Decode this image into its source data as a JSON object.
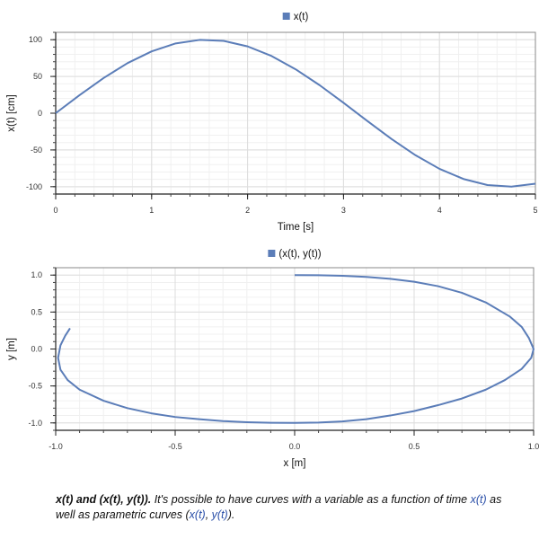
{
  "chart_data": [
    {
      "type": "line",
      "title": "",
      "xlabel": "Time [s]",
      "ylabel": "x(t) [cm]",
      "xlim": [
        0,
        5
      ],
      "ylim": [
        -110,
        110
      ],
      "xticks": [
        0,
        1,
        2,
        3,
        4,
        5
      ],
      "xtick_labels": [
        "0",
        "1",
        "2",
        "3",
        "4",
        "5"
      ],
      "yticks": [
        -100,
        -50,
        0,
        50,
        100
      ],
      "ytick_labels": [
        "-100",
        "-50",
        "0",
        "50",
        "100"
      ],
      "grid": true,
      "legend": "top-center",
      "series": [
        {
          "name": "x(t)",
          "color": "#5b7db8",
          "x": [
            0,
            0.25,
            0.5,
            0.75,
            1.0,
            1.25,
            1.5,
            1.75,
            2.0,
            2.25,
            2.5,
            2.75,
            3.0,
            3.25,
            3.5,
            3.75,
            4.0,
            4.25,
            4.5,
            4.75,
            5.0
          ],
          "y": [
            0,
            24.7,
            47.9,
            68.2,
            84.1,
            94.9,
            99.7,
            98.4,
            90.9,
            77.8,
            59.8,
            38.2,
            14.1,
            -10.8,
            -35.1,
            -57.2,
            -75.7,
            -89.5,
            -97.8,
            -99.9,
            -95.9
          ]
        }
      ]
    },
    {
      "type": "line",
      "title": "",
      "xlabel": "x [m]",
      "ylabel": "y [m]",
      "xlim": [
        -1.0,
        1.0
      ],
      "ylim": [
        -1.1,
        1.1
      ],
      "xticks": [
        -1.0,
        -0.5,
        0.0,
        0.5,
        1.0
      ],
      "xtick_labels": [
        "-1.0",
        "-0.5",
        "0.0",
        "0.5",
        "1.0"
      ],
      "yticks": [
        -1.0,
        -0.5,
        0.0,
        0.5,
        1.0
      ],
      "ytick_labels": [
        "-1.0",
        "-0.5",
        "0.0",
        "0.5",
        "1.0"
      ],
      "grid": true,
      "legend": "top-center",
      "series": [
        {
          "name": "(x(t), y(t))",
          "color": "#5b7db8",
          "x": [
            0.0,
            0.1,
            0.2,
            0.3,
            0.4,
            0.5,
            0.6,
            0.7,
            0.8,
            0.9,
            0.95,
            0.98,
            1.0,
            0.99,
            0.95,
            0.88,
            0.8,
            0.7,
            0.6,
            0.5,
            0.4,
            0.3,
            0.2,
            0.1,
            0.0,
            -0.1,
            -0.2,
            -0.3,
            -0.4,
            -0.5,
            -0.6,
            -0.7,
            -0.8,
            -0.9,
            -0.95,
            -0.98,
            -0.99,
            -0.98,
            -0.96,
            -0.94
          ],
          "y": [
            1.0,
            0.998,
            0.99,
            0.975,
            0.95,
            0.91,
            0.85,
            0.76,
            0.63,
            0.44,
            0.3,
            0.15,
            0.0,
            -0.12,
            -0.27,
            -0.42,
            -0.55,
            -0.67,
            -0.76,
            -0.84,
            -0.9,
            -0.95,
            -0.98,
            -0.995,
            -1.0,
            -0.998,
            -0.99,
            -0.975,
            -0.95,
            -0.92,
            -0.87,
            -0.8,
            -0.7,
            -0.55,
            -0.42,
            -0.28,
            -0.12,
            0.05,
            0.18,
            0.28
          ]
        }
      ]
    }
  ],
  "caption": {
    "bold": "x(t) and (x(t), y(t)).",
    "text1": " It's possible to have curves with a variable as a function of time ",
    "link1": "x(t)",
    "text2": " as well as parametric curves (",
    "link2": "x(t)",
    "text3": ", ",
    "link3": "y(t)",
    "text4": ")."
  }
}
